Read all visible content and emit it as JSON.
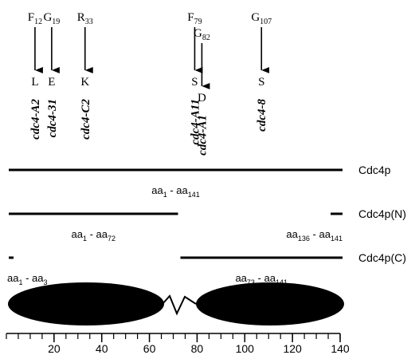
{
  "mutations": [
    {
      "from": "F",
      "position": 12,
      "to": "L",
      "allele": "cdc4-A2"
    },
    {
      "from": "G",
      "position": 19,
      "to": "E",
      "allele": "cdc4-31"
    },
    {
      "from": "R",
      "position": 33,
      "to": "K",
      "allele": "cdc4-C2"
    },
    {
      "from": "F",
      "position": 79,
      "to": "S",
      "allele": "cdc4-A11"
    },
    {
      "from": "G",
      "position": 82,
      "to": "D",
      "allele": "cdc4-A1"
    },
    {
      "from": "G",
      "position": 107,
      "to": "S",
      "allele": "cdc4-8"
    }
  ],
  "constructs": [
    {
      "name": "Cdc4p",
      "pieces": [
        {
          "start": 1,
          "end": 141
        }
      ]
    },
    {
      "name": "Cdc4p(N)",
      "pieces": [
        {
          "start": 1,
          "end": 72
        },
        {
          "start": 136,
          "end": 141
        }
      ]
    },
    {
      "name": "Cdc4p(C)",
      "pieces": [
        {
          "start": 1,
          "end": 3
        },
        {
          "start": 73,
          "end": 141
        }
      ]
    }
  ],
  "label_prefix": "aa",
  "label_separator": " - ",
  "axis": {
    "xlim": [
      0,
      140
    ],
    "ticks": [
      20,
      40,
      60,
      80,
      100,
      120,
      140
    ],
    "minor_ticks": [
      0,
      5,
      10,
      15,
      20,
      25,
      30,
      35,
      40,
      45,
      50,
      55,
      60,
      65,
      70,
      75,
      80,
      85,
      90,
      95,
      100,
      105,
      110,
      115,
      120,
      125,
      130,
      135,
      140
    ]
  }
}
